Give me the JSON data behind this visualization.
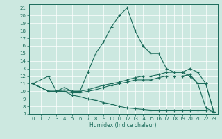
{
  "xlabel": "Humidex (Indice chaleur)",
  "background_color": "#cce8e0",
  "line_color": "#1a6b5a",
  "grid_color": "#ffffff",
  "xlim": [
    -0.5,
    23.5
  ],
  "ylim": [
    7,
    21.5
  ],
  "xticks": [
    0,
    1,
    2,
    3,
    4,
    5,
    6,
    7,
    8,
    9,
    10,
    11,
    12,
    13,
    14,
    15,
    16,
    17,
    18,
    19,
    20,
    21,
    22,
    23
  ],
  "yticks": [
    7,
    8,
    9,
    10,
    11,
    12,
    13,
    14,
    15,
    16,
    17,
    18,
    19,
    20,
    21
  ],
  "line1_x": [
    0,
    2,
    3,
    4,
    5,
    6,
    7,
    8,
    9,
    10,
    11,
    12,
    13,
    14,
    15,
    16,
    17,
    18,
    19,
    20,
    21,
    22,
    23
  ],
  "line1_y": [
    11,
    12,
    10,
    10.5,
    10,
    10,
    12.5,
    15,
    16.5,
    18.5,
    20,
    21,
    18,
    16,
    15,
    15,
    13,
    12.5,
    12.5,
    12,
    11,
    7.8,
    7.3
  ],
  "line2_x": [
    0,
    2,
    3,
    4,
    5,
    6,
    7,
    8,
    9,
    10,
    11,
    12,
    13,
    14,
    15,
    16,
    17,
    18,
    19,
    20,
    21,
    22,
    23
  ],
  "line2_y": [
    11,
    10,
    10,
    10.2,
    10,
    10,
    10.2,
    10.5,
    10.8,
    11,
    11.2,
    11.5,
    11.8,
    12,
    12,
    12.2,
    12.5,
    12.5,
    12.5,
    13,
    12.5,
    11,
    7.3
  ],
  "line3_x": [
    0,
    2,
    3,
    4,
    5,
    6,
    7,
    8,
    9,
    10,
    11,
    12,
    13,
    14,
    15,
    16,
    17,
    18,
    19,
    20,
    21,
    22,
    23
  ],
  "line3_y": [
    11,
    10,
    10,
    10,
    9.8,
    9.8,
    10,
    10.2,
    10.5,
    10.8,
    11,
    11.2,
    11.5,
    11.5,
    11.5,
    11.8,
    12,
    12,
    12,
    12.2,
    11,
    11,
    7.3
  ],
  "line4_x": [
    0,
    2,
    3,
    4,
    5,
    6,
    7,
    8,
    9,
    10,
    11,
    12,
    13,
    14,
    15,
    16,
    17,
    18,
    19,
    20,
    21,
    22,
    23
  ],
  "line4_y": [
    11,
    10,
    10,
    10,
    9.5,
    9.3,
    9.0,
    8.8,
    8.5,
    8.3,
    8.0,
    7.8,
    7.7,
    7.6,
    7.5,
    7.5,
    7.5,
    7.5,
    7.5,
    7.5,
    7.5,
    7.5,
    7.3
  ]
}
